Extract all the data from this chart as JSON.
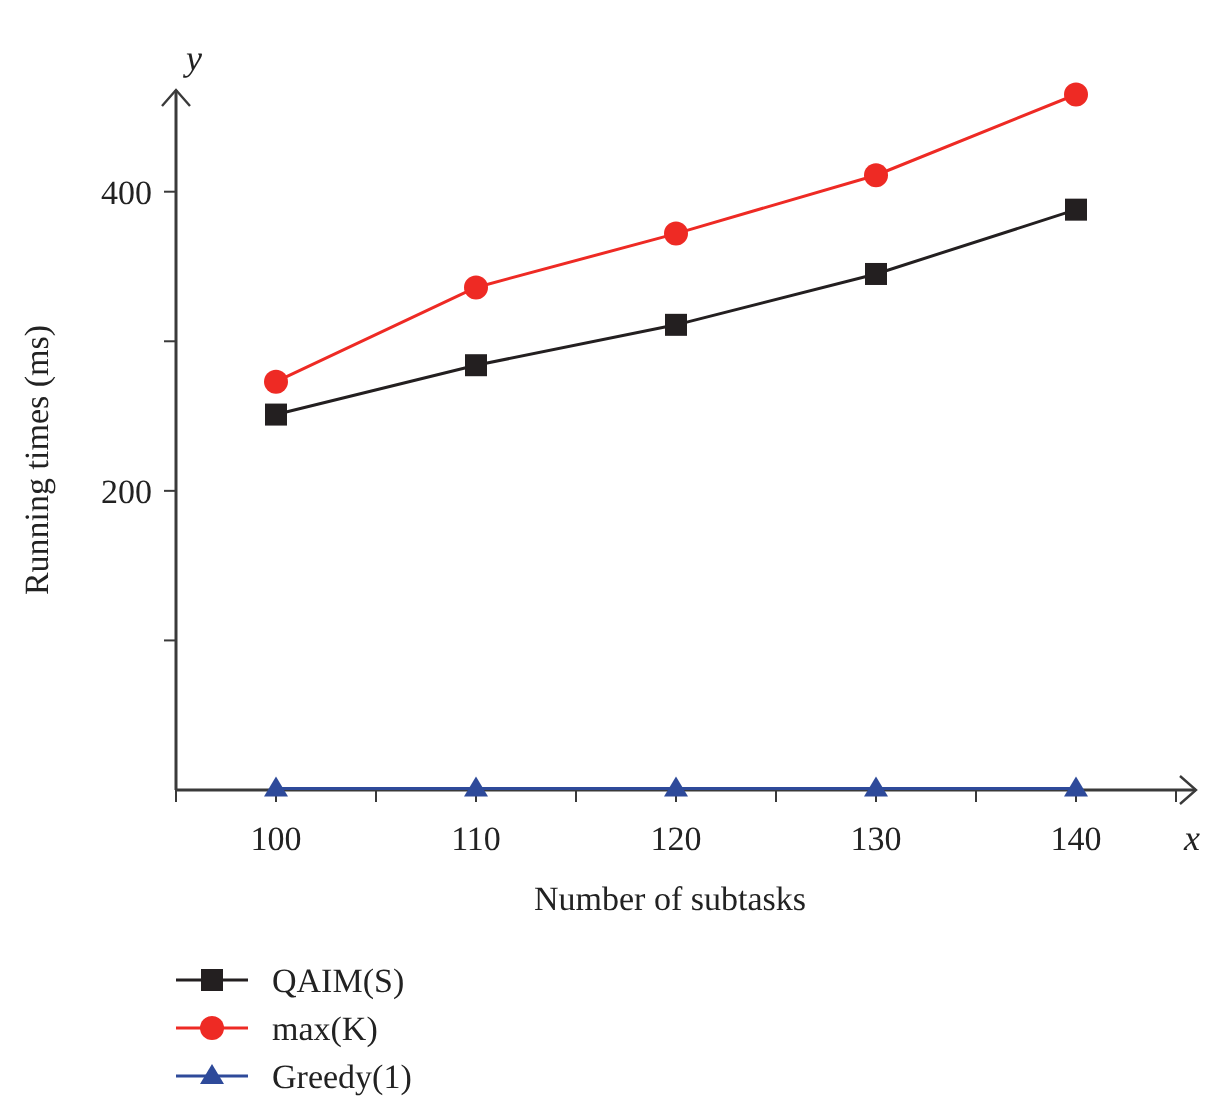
{
  "chart_data": {
    "type": "line",
    "xlabel": "Number of subtasks",
    "ylabel": "Running times (ms)",
    "annotations": [
      "y",
      "x"
    ],
    "x": [
      100,
      110,
      120,
      130,
      140
    ],
    "xlim": [
      95,
      146
    ],
    "xticks": [
      {
        "value": 95,
        "label": null
      },
      100,
      {
        "value": 105,
        "label": null
      },
      110,
      {
        "value": 115,
        "label": null
      },
      120,
      {
        "value": 125,
        "label": null
      },
      130,
      {
        "value": 135,
        "label": null
      },
      140,
      {
        "value": 145,
        "label": null
      }
    ],
    "ylim": [
      0,
      468
    ],
    "yticks": [
      {
        "value": 100,
        "label": null
      },
      200,
      {
        "value": 300,
        "label": null
      },
      400
    ],
    "grid": false,
    "legend": "bottom left",
    "series": [
      {
        "name": "QAIM(S)",
        "color": "#231f20",
        "marker": "square",
        "values": [
          251,
          284,
          311,
          345,
          388
        ]
      },
      {
        "name": "max(K)",
        "color": "#ee2a24",
        "marker": "circle",
        "values": [
          273,
          336,
          372,
          411,
          465
        ]
      },
      {
        "name": "Greedy(1)",
        "color": "#2e4a9a",
        "marker": "triangle",
        "values": [
          1,
          1,
          1,
          1,
          1
        ]
      }
    ]
  }
}
